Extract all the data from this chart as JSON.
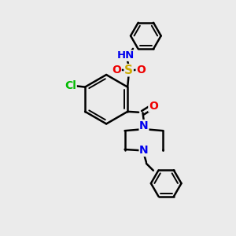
{
  "bg_color": "#ebebeb",
  "atom_colors": {
    "C": "#000000",
    "N": "#0000ee",
    "O": "#ee0000",
    "S": "#ccaa00",
    "Cl": "#00bb00",
    "H": "#777777"
  },
  "bond_color": "#000000",
  "figsize": [
    3.0,
    3.0
  ],
  "dpi": 100
}
